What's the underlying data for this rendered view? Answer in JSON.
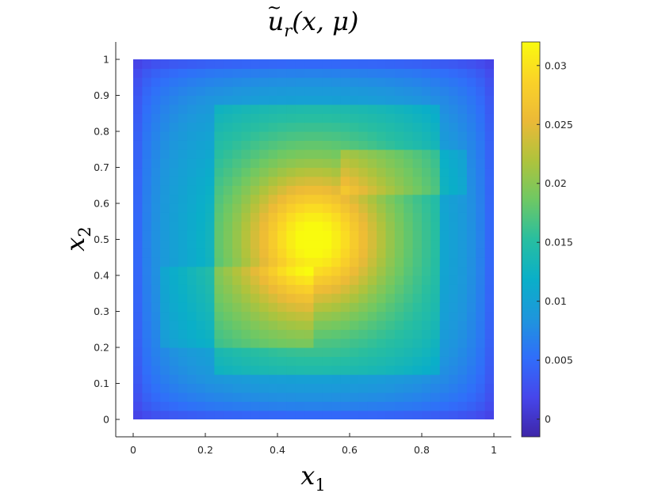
{
  "chart_data": {
    "type": "heatmap",
    "title": {
      "base": "u",
      "sub": "r",
      "args": "(x, μ)"
    },
    "xlabel": {
      "base": "x",
      "sub": "1"
    },
    "ylabel": {
      "base": "x",
      "sub": "2"
    },
    "xlim": [
      0,
      1
    ],
    "ylim": [
      0,
      1
    ],
    "x_ticks": [
      "0",
      "0.2",
      "0.4",
      "0.6",
      "0.8",
      "1"
    ],
    "y_ticks": [
      "0",
      "0.1",
      "0.2",
      "0.3",
      "0.4",
      "0.5",
      "0.6",
      "0.7",
      "0.8",
      "0.9",
      "1"
    ],
    "colorbar": {
      "range": [
        -0.0015,
        0.032
      ],
      "ticks": [
        "0",
        "0.005",
        "0.01",
        "0.015",
        "0.02",
        "0.025",
        "0.03"
      ],
      "colormap": "parula"
    },
    "grid": false,
    "z_peak": {
      "x": 0.5,
      "y": 0.5,
      "value": 0.032
    },
    "z_boundary": 0
  }
}
